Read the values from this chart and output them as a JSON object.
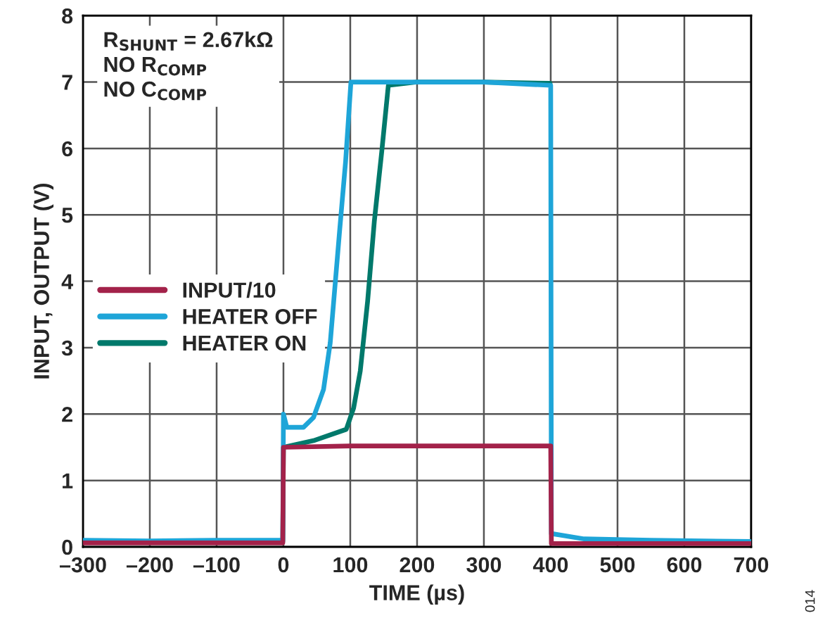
{
  "chart_data": {
    "type": "line",
    "xlabel": "TIME (µs)",
    "ylabel": "INPUT, OUTPUT (V)",
    "xlim": [
      -300,
      700
    ],
    "ylim": [
      0,
      8
    ],
    "xticks": [
      {
        "value": -300,
        "label": "–300"
      },
      {
        "value": -200,
        "label": "–200"
      },
      {
        "value": -100,
        "label": "–100"
      },
      0,
      100,
      200,
      300,
      400,
      500,
      600,
      700
    ],
    "yticks": [
      0,
      1,
      2,
      3,
      4,
      5,
      6,
      7,
      8
    ],
    "grid": true,
    "legend": "left",
    "line_style": "solid",
    "marker": "none",
    "series": [
      {
        "name": "INPUT/10",
        "color": "#a3224a",
        "x": [
          -300,
          -1,
          0,
          100,
          200,
          300,
          400,
          401,
          700
        ],
        "values": [
          0.06,
          0.06,
          1.5,
          1.52,
          1.52,
          1.52,
          1.52,
          0.05,
          0.05
        ]
      },
      {
        "name": "HEATER OFF",
        "color": "#1ea5d8",
        "x": [
          -300,
          -200,
          -100,
          -1,
          0,
          5,
          30,
          45,
          60,
          70,
          84,
          93,
          101,
          200,
          300,
          400,
          401,
          450,
          550,
          700
        ],
        "values": [
          0.1,
          0.09,
          0.1,
          0.1,
          2.0,
          1.8,
          1.8,
          1.95,
          2.37,
          3.07,
          4.75,
          5.8,
          7.0,
          7.0,
          7.0,
          6.95,
          0.2,
          0.12,
          0.1,
          0.08
        ]
      },
      {
        "name": "HEATER ON",
        "color": "#00796b",
        "x": [
          -300,
          -1,
          0,
          45,
          94,
          105,
          115,
          126,
          136,
          147,
          157,
          200,
          300,
          399
        ],
        "values": [
          0.08,
          0.08,
          1.5,
          1.6,
          1.77,
          2.09,
          2.65,
          3.7,
          4.9,
          5.94,
          6.95,
          7.0,
          7.0,
          6.98
        ]
      }
    ],
    "annotations": [
      "R$_{SHUNT}$ = 2.67kΩ\nNO R$_{COMP}$\nNO C$_{COMP}$",
      "014"
    ]
  }
}
